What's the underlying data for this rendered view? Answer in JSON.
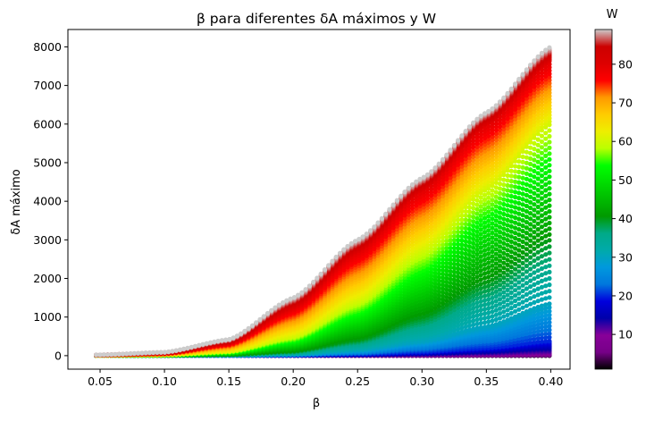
{
  "chart_data": {
    "type": "scatter",
    "title": "β para diferentes δA máximos  y W",
    "xlabel": "β",
    "ylabel": "δA máximo",
    "xlim": [
      0.025,
      0.415
    ],
    "ylim": [
      -350,
      8450
    ],
    "x_ticks": [
      0.05,
      0.1,
      0.15,
      0.2,
      0.25,
      0.3,
      0.35,
      0.4
    ],
    "x_tick_labels": [
      "0.05",
      "0.10",
      "0.15",
      "0.20",
      "0.25",
      "0.30",
      "0.35",
      "0.40"
    ],
    "y_ticks": [
      0,
      1000,
      2000,
      3000,
      4000,
      5000,
      6000,
      7000,
      8000
    ],
    "y_tick_labels": [
      "0",
      "1000",
      "2000",
      "3000",
      "4000",
      "5000",
      "6000",
      "7000",
      "8000"
    ],
    "x_range": [
      0.047,
      0.399
    ],
    "grid": false,
    "colorbar": {
      "label": "W",
      "colormap": "nipy_spectral",
      "range": [
        1,
        89
      ],
      "ticks": [
        10,
        20,
        30,
        40,
        50,
        60,
        70,
        80
      ],
      "tick_labels": [
        "10",
        "20",
        "30",
        "40",
        "50",
        "60",
        "70",
        "80"
      ]
    },
    "series_summary": "one scatter curve per W value from 1 to 89; δA máximo rises with β",
    "series": [
      {
        "W": 89,
        "x": [
          0.05,
          0.1,
          0.15,
          0.2,
          0.25,
          0.3,
          0.35,
          0.4
        ],
        "y": [
          20,
          90,
          420,
          1500,
          3000,
          4600,
          6300,
          8000
        ]
      },
      {
        "W": 80,
        "x": [
          0.05,
          0.1,
          0.15,
          0.2,
          0.25,
          0.3,
          0.35,
          0.4
        ],
        "y": [
          15,
          60,
          330,
          1250,
          2700,
          4300,
          6000,
          7650
        ]
      },
      {
        "W": 60,
        "x": [
          0.05,
          0.1,
          0.15,
          0.2,
          0.25,
          0.3,
          0.35,
          0.4
        ],
        "y": [
          5,
          20,
          110,
          500,
          1400,
          2700,
          4300,
          6000
        ]
      },
      {
        "W": 40,
        "x": [
          0.05,
          0.1,
          0.15,
          0.2,
          0.25,
          0.3,
          0.35,
          0.4
        ],
        "y": [
          2,
          5,
          30,
          120,
          420,
          1000,
          1900,
          3000
        ]
      },
      {
        "W": 30,
        "x": [
          0.05,
          0.1,
          0.15,
          0.2,
          0.25,
          0.3,
          0.35,
          0.4
        ],
        "y": [
          1,
          2,
          10,
          45,
          150,
          380,
          750,
          1350
        ]
      },
      {
        "W": 20,
        "x": [
          0.05,
          0.1,
          0.15,
          0.2,
          0.25,
          0.3,
          0.35,
          0.4
        ],
        "y": [
          0,
          1,
          3,
          12,
          40,
          100,
          200,
          380
        ]
      },
      {
        "W": 10,
        "x": [
          0.05,
          0.1,
          0.15,
          0.2,
          0.25,
          0.3,
          0.35,
          0.4
        ],
        "y": [
          0,
          0,
          1,
          3,
          8,
          18,
          35,
          60
        ]
      }
    ]
  }
}
